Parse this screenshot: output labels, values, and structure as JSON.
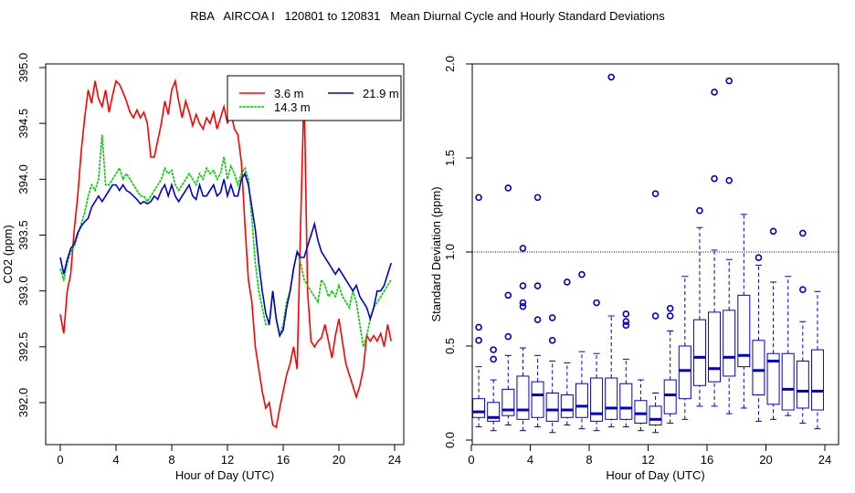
{
  "title": "RBA   AIRCOA I   120801 to 120831   Mean Diurnal Cycle and Hourly Standard Deviations",
  "chart_data": [
    {
      "type": "line",
      "xlabel": "Hour of Day (UTC)",
      "ylabel": "CO2 (ppm)",
      "xlim": [
        0,
        24
      ],
      "ylim": [
        391.8,
        395.0
      ],
      "xticks": [
        "0",
        "4",
        "8",
        "12",
        "16",
        "20",
        "24"
      ],
      "yticks": [
        "392.0",
        "392.5",
        "393.0",
        "393.5",
        "394.0",
        "394.5",
        "395.0"
      ],
      "legend_position": "top-right",
      "series": [
        {
          "name": "3.6 m",
          "color": "#ff0000",
          "x": [
            0,
            0.25,
            0.5,
            0.75,
            1,
            1.25,
            1.5,
            1.75,
            2,
            2.25,
            2.5,
            2.75,
            3,
            3.25,
            3.5,
            3.75,
            4,
            4.25,
            4.5,
            4.75,
            5,
            5.25,
            5.5,
            5.75,
            6,
            6.25,
            6.5,
            6.75,
            7,
            7.25,
            7.5,
            7.75,
            8,
            8.25,
            8.5,
            8.75,
            9,
            9.25,
            9.5,
            9.75,
            10,
            10.25,
            10.5,
            10.75,
            11,
            11.25,
            11.5,
            11.75,
            12,
            12.25,
            12.5,
            12.75,
            13,
            13.25,
            13.5,
            13.75,
            14,
            14.25,
            14.5,
            14.75,
            15,
            15.25,
            15.5,
            15.75,
            16,
            16.25,
            16.5,
            16.75,
            17,
            17.25,
            17.5,
            17.75,
            18,
            18.25,
            18.5,
            18.75,
            19,
            19.25,
            19.5,
            19.75,
            20,
            20.25,
            20.5,
            20.75,
            21,
            21.25,
            21.5,
            21.75,
            22,
            22.25,
            22.5,
            22.75,
            23,
            23.25,
            23.5,
            23.75
          ],
          "y": [
            392.79,
            392.62,
            393.0,
            393.15,
            393.55,
            393.85,
            394.25,
            394.55,
            394.8,
            394.68,
            394.88,
            394.72,
            394.65,
            394.8,
            394.6,
            394.75,
            394.88,
            394.85,
            394.78,
            394.7,
            394.6,
            394.55,
            394.62,
            394.55,
            394.6,
            394.5,
            394.2,
            394.2,
            394.35,
            394.5,
            394.7,
            394.58,
            394.8,
            394.88,
            394.7,
            394.55,
            394.7,
            394.6,
            394.48,
            394.58,
            394.5,
            394.45,
            394.55,
            394.5,
            394.6,
            394.45,
            394.55,
            394.65,
            394.5,
            394.6,
            394.45,
            394.4,
            394.15,
            393.6,
            393.1,
            392.9,
            392.5,
            392.3,
            392.1,
            391.95,
            392.0,
            391.8,
            391.78,
            391.95,
            392.1,
            392.25,
            392.35,
            392.5,
            392.3,
            393.6,
            394.8,
            393.0,
            392.55,
            392.5,
            392.55,
            392.58,
            392.7,
            392.55,
            392.4,
            392.6,
            392.75,
            392.55,
            392.35,
            392.25,
            392.15,
            392.05,
            392.15,
            392.3,
            392.6,
            392.55,
            392.6,
            392.55,
            392.62,
            392.5,
            392.7,
            392.55
          ]
        },
        {
          "name": "14.3 m",
          "color": "#00cc00",
          "x": [
            0,
            0.25,
            0.5,
            0.75,
            1,
            1.25,
            1.5,
            1.75,
            2,
            2.25,
            2.5,
            2.75,
            3,
            3.25,
            3.5,
            3.75,
            4,
            4.25,
            4.5,
            4.75,
            5,
            5.25,
            5.5,
            5.75,
            6,
            6.25,
            6.5,
            6.75,
            7,
            7.25,
            7.5,
            7.75,
            8,
            8.25,
            8.5,
            8.75,
            9,
            9.25,
            9.5,
            9.75,
            10,
            10.25,
            10.5,
            10.75,
            11,
            11.25,
            11.5,
            11.75,
            12,
            12.25,
            12.5,
            12.75,
            13,
            13.25,
            13.5,
            13.75,
            14,
            14.25,
            14.5,
            14.75,
            15,
            15.25,
            15.5,
            15.75,
            16,
            16.25,
            16.5,
            16.75,
            17,
            17.25,
            17.5,
            17.75,
            18,
            18.25,
            18.5,
            18.75,
            19,
            19.25,
            19.5,
            19.75,
            20,
            20.25,
            20.5,
            20.75,
            21,
            21.25,
            21.5,
            21.75,
            22,
            22.25,
            22.5,
            22.75,
            23,
            23.25,
            23.5,
            23.75
          ],
          "y": [
            393.2,
            393.1,
            393.25,
            393.35,
            393.4,
            393.5,
            393.6,
            393.7,
            393.85,
            393.95,
            393.9,
            394.0,
            394.4,
            393.95,
            393.95,
            394.0,
            394.05,
            394.1,
            394.0,
            394.05,
            394.0,
            393.95,
            393.9,
            393.85,
            393.85,
            393.8,
            393.85,
            393.9,
            393.95,
            394.0,
            394.1,
            394.05,
            394.08,
            393.95,
            393.9,
            393.95,
            394.0,
            394.05,
            394.0,
            393.95,
            394.05,
            394.0,
            394.1,
            394.05,
            394.08,
            394.0,
            394.05,
            394.2,
            394.0,
            394.12,
            394.05,
            393.95,
            394.05,
            394.1,
            394.0,
            393.65,
            393.25,
            393.0,
            392.85,
            392.7,
            392.7,
            393.0,
            392.75,
            392.6,
            392.7,
            392.9,
            393.0,
            393.2,
            393.35,
            393.25,
            393.1,
            393.05,
            393.0,
            392.95,
            392.9,
            393.1,
            393.05,
            392.95,
            393.0,
            392.95,
            393.05,
            392.95,
            392.9,
            392.85,
            393.0,
            392.9,
            392.7,
            392.5,
            392.6,
            392.75,
            392.85,
            392.9,
            392.95,
            393.0,
            393.05,
            393.1
          ]
        },
        {
          "name": "21.9 m",
          "color": "#0000cc",
          "x": [
            0,
            0.25,
            0.5,
            0.75,
            1,
            1.25,
            1.5,
            1.75,
            2,
            2.25,
            2.5,
            2.75,
            3,
            3.25,
            3.5,
            3.75,
            4,
            4.25,
            4.5,
            4.75,
            5,
            5.25,
            5.5,
            5.75,
            6,
            6.25,
            6.5,
            6.75,
            7,
            7.25,
            7.5,
            7.75,
            8,
            8.25,
            8.5,
            8.75,
            9,
            9.25,
            9.5,
            9.75,
            10,
            10.25,
            10.5,
            10.75,
            11,
            11.25,
            11.5,
            11.75,
            12,
            12.25,
            12.5,
            12.75,
            13,
            13.25,
            13.5,
            13.75,
            14,
            14.25,
            14.5,
            14.75,
            15,
            15.25,
            15.5,
            15.75,
            16,
            16.25,
            16.5,
            16.75,
            17,
            17.25,
            17.5,
            17.75,
            18,
            18.25,
            18.5,
            18.75,
            19,
            19.25,
            19.5,
            19.75,
            20,
            20.25,
            20.5,
            20.75,
            21,
            21.25,
            21.5,
            21.75,
            22,
            22.25,
            22.5,
            22.75,
            23,
            23.25,
            23.5,
            23.75
          ],
          "y": [
            393.3,
            393.15,
            393.28,
            393.38,
            393.42,
            393.52,
            393.58,
            393.62,
            393.65,
            393.75,
            393.8,
            393.85,
            393.8,
            393.85,
            393.9,
            393.95,
            393.95,
            393.9,
            393.95,
            393.9,
            393.88,
            393.85,
            393.82,
            393.78,
            393.8,
            393.78,
            393.8,
            393.85,
            393.82,
            393.9,
            393.95,
            393.85,
            393.95,
            393.85,
            393.8,
            393.85,
            393.9,
            393.95,
            393.85,
            393.82,
            393.95,
            393.85,
            393.85,
            393.9,
            393.95,
            393.85,
            393.88,
            394.0,
            393.85,
            393.95,
            393.85,
            393.85,
            394.0,
            394.05,
            393.95,
            393.75,
            393.55,
            393.25,
            393.0,
            392.8,
            392.7,
            393.0,
            392.75,
            392.6,
            392.65,
            392.85,
            393.0,
            393.2,
            393.35,
            393.3,
            393.3,
            393.4,
            393.5,
            393.6,
            393.45,
            393.35,
            393.3,
            393.25,
            393.2,
            393.15,
            393.2,
            393.15,
            393.1,
            393.05,
            393.0,
            393.05,
            392.95,
            392.9,
            392.85,
            392.75,
            392.85,
            393.0,
            393.0,
            393.05,
            393.15,
            393.25
          ]
        }
      ]
    },
    {
      "type": "box",
      "xlabel": "Hour of Day (UTC)",
      "ylabel": "Standard Deviation (ppm)",
      "xlim": [
        0,
        24
      ],
      "ylim": [
        0.0,
        2.0
      ],
      "xticks": [
        "0",
        "4",
        "8",
        "12",
        "16",
        "20",
        "24"
      ],
      "yticks": [
        "0.0",
        "0.5",
        "1.0",
        "1.5",
        "2.0"
      ],
      "reference_line": 1.0,
      "color": "#0000cc",
      "boxes": [
        {
          "x": 0.5,
          "min": 0.07,
          "q1": 0.12,
          "median": 0.15,
          "q3": 0.22,
          "max": 0.39,
          "outliers": [
            0.53,
            0.6,
            1.29
          ]
        },
        {
          "x": 1.5,
          "min": 0.05,
          "q1": 0.1,
          "median": 0.12,
          "q3": 0.2,
          "max": 0.32,
          "outliers": [
            0.43,
            0.48
          ]
        },
        {
          "x": 2.5,
          "min": 0.08,
          "q1": 0.13,
          "median": 0.16,
          "q3": 0.27,
          "max": 0.45,
          "outliers": [
            0.55,
            0.77,
            1.34
          ]
        },
        {
          "x": 3.5,
          "min": 0.05,
          "q1": 0.11,
          "median": 0.16,
          "q3": 0.34,
          "max": 0.49,
          "outliers": [
            0.71,
            0.73,
            0.82,
            1.02
          ]
        },
        {
          "x": 4.5,
          "min": 0.07,
          "q1": 0.12,
          "median": 0.24,
          "q3": 0.31,
          "max": 0.45,
          "outliers": [
            0.64,
            0.82,
            1.29
          ]
        },
        {
          "x": 5.5,
          "min": 0.04,
          "q1": 0.1,
          "median": 0.16,
          "q3": 0.25,
          "max": 0.42,
          "outliers": [
            0.53,
            0.65
          ]
        },
        {
          "x": 6.5,
          "min": 0.08,
          "q1": 0.12,
          "median": 0.16,
          "q3": 0.24,
          "max": 0.41,
          "outliers": [
            0.84
          ]
        },
        {
          "x": 7.5,
          "min": 0.06,
          "q1": 0.12,
          "median": 0.18,
          "q3": 0.3,
          "max": 0.47,
          "outliers": [
            0.88
          ]
        },
        {
          "x": 8.5,
          "min": 0.05,
          "q1": 0.1,
          "median": 0.14,
          "q3": 0.33,
          "max": 0.46,
          "outliers": [
            0.73
          ]
        },
        {
          "x": 9.5,
          "min": 0.07,
          "q1": 0.11,
          "median": 0.17,
          "q3": 0.33,
          "max": 0.66,
          "outliers": [
            1.93
          ]
        },
        {
          "x": 10.5,
          "min": 0.07,
          "q1": 0.11,
          "median": 0.17,
          "q3": 0.3,
          "max": 0.43,
          "outliers": [
            0.61,
            0.63,
            0.67
          ]
        },
        {
          "x": 11.5,
          "min": 0.05,
          "q1": 0.09,
          "median": 0.14,
          "q3": 0.21,
          "max": 0.32,
          "outliers": []
        },
        {
          "x": 12.5,
          "min": 0.04,
          "q1": 0.08,
          "median": 0.11,
          "q3": 0.18,
          "max": 0.25,
          "outliers": [
            0.66,
            1.31
          ]
        },
        {
          "x": 13.5,
          "min": 0.09,
          "q1": 0.14,
          "median": 0.24,
          "q3": 0.32,
          "max": 0.58,
          "outliers": [
            0.66,
            0.7
          ]
        },
        {
          "x": 14.5,
          "min": 0.11,
          "q1": 0.22,
          "median": 0.37,
          "q3": 0.5,
          "max": 0.87,
          "outliers": []
        },
        {
          "x": 15.5,
          "min": 0.18,
          "q1": 0.29,
          "median": 0.44,
          "q3": 0.64,
          "max": 1.13,
          "outliers": [
            1.22
          ]
        },
        {
          "x": 16.5,
          "min": 0.18,
          "q1": 0.31,
          "median": 0.38,
          "q3": 0.68,
          "max": 1.01,
          "outliers": [
            1.39,
            1.85
          ]
        },
        {
          "x": 17.5,
          "min": 0.14,
          "q1": 0.34,
          "median": 0.44,
          "q3": 0.69,
          "max": 0.96,
          "outliers": [
            1.38,
            1.91
          ]
        },
        {
          "x": 18.5,
          "min": 0.17,
          "q1": 0.39,
          "median": 0.45,
          "q3": 0.77,
          "max": 1.2,
          "outliers": []
        },
        {
          "x": 19.5,
          "min": 0.1,
          "q1": 0.24,
          "median": 0.37,
          "q3": 0.53,
          "max": 0.93,
          "outliers": [
            0.97
          ]
        },
        {
          "x": 20.5,
          "min": 0.11,
          "q1": 0.19,
          "median": 0.42,
          "q3": 0.46,
          "max": 0.84,
          "outliers": [
            1.11
          ]
        },
        {
          "x": 21.5,
          "min": 0.13,
          "q1": 0.16,
          "median": 0.27,
          "q3": 0.46,
          "max": 0.87,
          "outliers": []
        },
        {
          "x": 22.5,
          "min": 0.09,
          "q1": 0.17,
          "median": 0.26,
          "q3": 0.42,
          "max": 0.63,
          "outliers": [
            0.8,
            1.1
          ]
        },
        {
          "x": 23.5,
          "min": 0.06,
          "q1": 0.16,
          "median": 0.26,
          "q3": 0.48,
          "max": 0.79,
          "outliers": []
        }
      ]
    }
  ]
}
